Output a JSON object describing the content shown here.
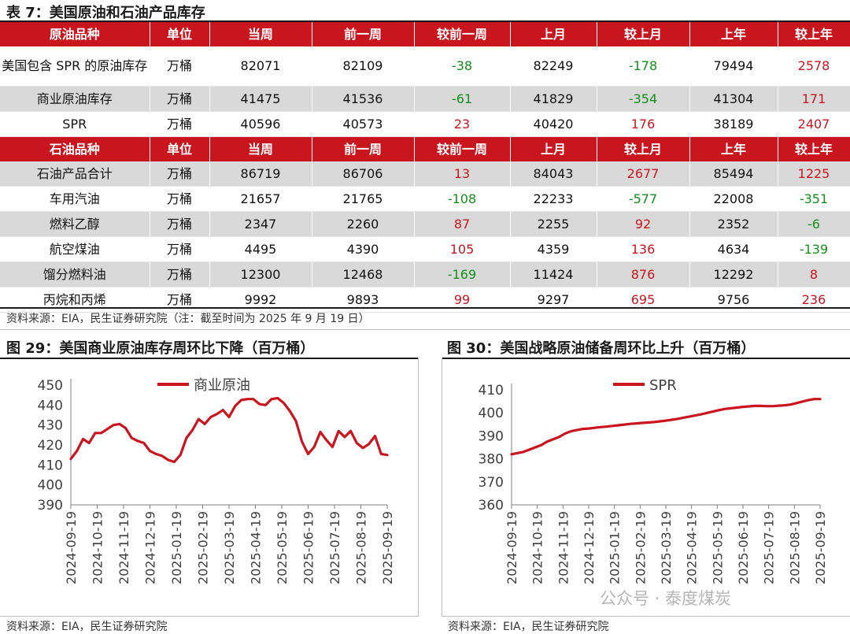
{
  "table": {
    "title": "表 7：美国原油和石油产品库存",
    "crude_header": [
      "原油品种",
      "单位",
      "当周",
      "前一周",
      "较前一周",
      "上月",
      "较上月",
      "上年",
      "较上年"
    ],
    "crude_rows": [
      {
        "cells": [
          "美国包含 SPR 的原油库存",
          "万桶",
          "82071",
          "82109",
          "-38",
          "82249",
          "-178",
          "79494",
          "2578"
        ],
        "signs": [
          "",
          "",
          "",
          "",
          "neg",
          "",
          "neg",
          "",
          "pos"
        ]
      },
      {
        "cells": [
          "商业原油库存",
          "万桶",
          "41475",
          "41536",
          "-61",
          "41829",
          "-354",
          "41304",
          "171"
        ],
        "signs": [
          "",
          "",
          "",
          "",
          "neg",
          "",
          "neg",
          "",
          "pos"
        ]
      },
      {
        "cells": [
          "SPR",
          "万桶",
          "40596",
          "40573",
          "23",
          "40420",
          "176",
          "38189",
          "2407"
        ],
        "signs": [
          "",
          "",
          "",
          "",
          "pos",
          "",
          "pos",
          "",
          "pos"
        ]
      }
    ],
    "product_header": [
      "石油品种",
      "单位",
      "当周",
      "前一周",
      "较前一周",
      "上月",
      "较上月",
      "上年",
      "较上年"
    ],
    "product_rows": [
      {
        "cells": [
          "石油产品合计",
          "万桶",
          "86719",
          "86706",
          "13",
          "84043",
          "2677",
          "85494",
          "1225"
        ],
        "signs": [
          "",
          "",
          "",
          "",
          "pos",
          "",
          "pos",
          "",
          "pos"
        ]
      },
      {
        "cells": [
          "车用汽油",
          "万桶",
          "21657",
          "21765",
          "-108",
          "22233",
          "-577",
          "22008",
          "-351"
        ],
        "signs": [
          "",
          "",
          "",
          "",
          "neg",
          "",
          "neg",
          "",
          "neg"
        ]
      },
      {
        "cells": [
          "燃料乙醇",
          "万桶",
          "2347",
          "2260",
          "87",
          "2255",
          "92",
          "2352",
          "-6"
        ],
        "signs": [
          "",
          "",
          "",
          "",
          "pos",
          "",
          "pos",
          "",
          "neg"
        ]
      },
      {
        "cells": [
          "航空煤油",
          "万桶",
          "4495",
          "4390",
          "105",
          "4359",
          "136",
          "4634",
          "-139"
        ],
        "signs": [
          "",
          "",
          "",
          "",
          "pos",
          "",
          "pos",
          "",
          "neg"
        ]
      },
      {
        "cells": [
          "馏分燃料油",
          "万桶",
          "12300",
          "12468",
          "-169",
          "11424",
          "876",
          "12292",
          "8"
        ],
        "signs": [
          "",
          "",
          "",
          "",
          "neg",
          "",
          "pos",
          "",
          "pos"
        ]
      },
      {
        "cells": [
          "丙烷和丙烯",
          "万桶",
          "9992",
          "9893",
          "99",
          "9297",
          "695",
          "9756",
          "236"
        ],
        "signs": [
          "",
          "",
          "",
          "",
          "pos",
          "",
          "pos",
          "",
          "pos"
        ]
      }
    ],
    "source": "资料来源：EIA，民生证券研究院（注：截至时间为 2025 年 9 月 19 日）"
  },
  "colors": {
    "accent_red": "#c9151e",
    "positive": "#c9151e",
    "negative": "#129019",
    "shade": "#d9d9d9"
  },
  "figure29": {
    "title": "图 29：美国商业原油库存周环比下降（百万桶）",
    "source": "资料来源：EIA，民生证券研究院"
  },
  "figure30": {
    "title": "图 30：美国战略原油储备周环比上升（百万桶）",
    "source": "资料来源：EIA，民生证券研究院"
  },
  "chart_data": [
    {
      "type": "line",
      "title": "图 29：美国商业原油库存周环比下降（百万桶）",
      "xlabel": "",
      "ylabel": "",
      "ylim": [
        390,
        450
      ],
      "yticks": [
        390,
        400,
        410,
        420,
        430,
        440,
        450
      ],
      "xticks": [
        "2024-09-19",
        "2024-10-19",
        "2024-11-19",
        "2024-12-19",
        "2025-01-19",
        "2025-02-19",
        "2025-03-19",
        "2025-04-19",
        "2025-05-19",
        "2025-06-19",
        "2025-07-19",
        "2025-08-19",
        "2025-09-19"
      ],
      "legend": "top-center",
      "series": [
        {
          "name": "商业原油",
          "color": "#c9151e",
          "values": [
            413.0,
            417.0,
            423.0,
            421.0,
            426.0,
            426.0,
            428.0,
            430.0,
            430.5,
            428.5,
            423.5,
            422.0,
            421.0,
            417.0,
            415.5,
            414.5,
            412.5,
            411.5,
            415.0,
            423.5,
            427.5,
            433.0,
            430.5,
            434.0,
            435.5,
            437.5,
            434.0,
            439.5,
            442.5,
            443.0,
            443.0,
            440.5,
            440.0,
            443.0,
            443.5,
            441.0,
            437.0,
            432.0,
            421.5,
            415.5,
            419.0,
            426.5,
            422.5,
            419.0,
            427.0,
            424.0,
            427.0,
            421.0,
            418.5,
            420.5,
            424.5,
            415.5,
            415.0
          ]
        }
      ]
    },
    {
      "type": "line",
      "title": "图 30：美国战略原油储备周环比上升（百万桶）",
      "xlabel": "",
      "ylabel": "",
      "ylim": [
        360,
        410
      ],
      "yticks": [
        360,
        370,
        380,
        390,
        400,
        410
      ],
      "xticks": [
        "2024-09-19",
        "2024-10-19",
        "2024-11-19",
        "2024-12-19",
        "2025-01-19",
        "2025-02-19",
        "2025-03-19",
        "2025-04-19",
        "2025-05-19",
        "2025-06-19",
        "2025-07-19",
        "2025-08-19",
        "2025-09-19"
      ],
      "legend": "top-center",
      "series": [
        {
          "name": "SPR",
          "color": "#c9151e",
          "values": [
            382.0,
            382.5,
            383.0,
            384.0,
            385.0,
            386.0,
            387.5,
            388.5,
            389.5,
            391.0,
            392.0,
            392.5,
            393.0,
            393.2,
            393.5,
            393.8,
            394.0,
            394.3,
            394.6,
            394.9,
            395.2,
            395.4,
            395.6,
            395.8,
            396.0,
            396.3,
            396.6,
            397.0,
            397.4,
            397.9,
            398.4,
            398.9,
            399.4,
            400.0,
            400.6,
            401.2,
            401.7,
            402.0,
            402.3,
            402.6,
            402.8,
            403.0,
            403.0,
            402.9,
            402.9,
            403.1,
            403.3,
            403.6,
            404.2,
            404.9,
            405.5,
            406.0,
            406.0
          ]
        }
      ]
    }
  ],
  "watermark": "公众号 · 泰度煤炭"
}
